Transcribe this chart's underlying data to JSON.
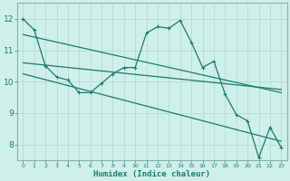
{
  "bg_color": "#cff0ea",
  "grid_color": "#b8ddd8",
  "line_color": "#1a7a6e",
  "spine_color": "#8ab0aa",
  "xlabel": "Humidex (Indice chaleur)",
  "xlim": [
    -0.5,
    23.5
  ],
  "ylim": [
    7.5,
    12.5
  ],
  "yticks": [
    8,
    9,
    10,
    11,
    12
  ],
  "xticks": [
    0,
    1,
    2,
    3,
    4,
    5,
    6,
    7,
    8,
    9,
    10,
    11,
    12,
    13,
    14,
    15,
    16,
    17,
    18,
    19,
    20,
    21,
    22,
    23
  ],
  "line1_x": [
    0,
    1,
    2,
    3,
    4,
    5,
    6,
    7,
    8,
    9,
    10,
    11,
    12,
    13,
    14,
    15,
    16,
    17,
    18,
    19,
    20,
    21,
    22,
    23
  ],
  "line1_y": [
    12.0,
    11.65,
    10.5,
    10.15,
    10.05,
    9.65,
    9.65,
    9.95,
    10.25,
    10.45,
    10.45,
    11.55,
    11.75,
    11.7,
    11.95,
    11.25,
    10.45,
    10.65,
    9.6,
    8.95,
    8.75,
    7.58,
    8.55,
    7.9
  ],
  "line2_x": [
    0,
    23
  ],
  "line2_y": [
    11.5,
    9.65
  ],
  "line3_x": [
    0,
    23
  ],
  "line3_y": [
    10.6,
    9.75
  ],
  "line4_x": [
    0,
    23
  ],
  "line4_y": [
    10.25,
    8.1
  ]
}
